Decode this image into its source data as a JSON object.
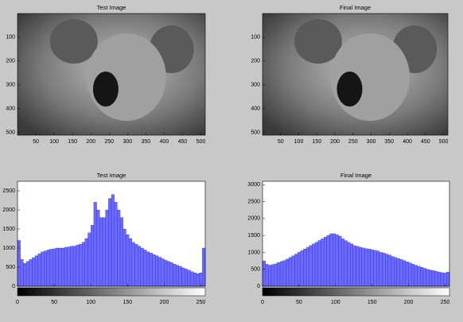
{
  "chart_data": [
    {
      "type": "image",
      "title": "Test Image",
      "xlim": [
        0,
        512
      ],
      "ylim": [
        0,
        512
      ],
      "y_reversed": true,
      "xticks": [
        50,
        100,
        150,
        200,
        250,
        300,
        350,
        400,
        450,
        500
      ],
      "yticks": [
        100,
        200,
        300,
        400,
        500
      ]
    },
    {
      "type": "image",
      "title": "Final Image",
      "xlim": [
        0,
        512
      ],
      "ylim": [
        0,
        512
      ],
      "y_reversed": true,
      "xticks": [
        50,
        100,
        150,
        200,
        250,
        300,
        350,
        400,
        450,
        500
      ],
      "yticks": [
        100,
        200,
        300,
        400,
        500
      ]
    },
    {
      "type": "histogram",
      "title": "Test Image",
      "color": "#6a6aff",
      "xlim": [
        0,
        256
      ],
      "ylim": [
        0,
        2750
      ],
      "xticks": [
        0,
        50,
        100,
        150,
        200,
        250
      ],
      "yticks": [
        0,
        500,
        1000,
        1500,
        2000,
        2500
      ],
      "x": [
        0,
        4,
        8,
        12,
        16,
        20,
        24,
        28,
        32,
        36,
        40,
        44,
        48,
        52,
        56,
        60,
        64,
        68,
        72,
        76,
        80,
        84,
        88,
        92,
        96,
        100,
        104,
        108,
        112,
        116,
        120,
        124,
        128,
        132,
        136,
        140,
        144,
        148,
        152,
        156,
        160,
        164,
        168,
        172,
        176,
        180,
        184,
        188,
        192,
        196,
        200,
        204,
        208,
        212,
        216,
        220,
        224,
        228,
        232,
        236,
        240,
        244,
        248,
        252
      ],
      "values": [
        1200,
        700,
        600,
        650,
        700,
        750,
        800,
        850,
        900,
        920,
        950,
        970,
        980,
        1000,
        1000,
        1000,
        1020,
        1030,
        1050,
        1050,
        1080,
        1100,
        1150,
        1250,
        1400,
        1600,
        2200,
        2000,
        1800,
        1800,
        2000,
        2300,
        2400,
        2200,
        2000,
        1800,
        1500,
        1350,
        1250,
        1150,
        1100,
        1050,
        1000,
        950,
        900,
        870,
        830,
        800,
        760,
        720,
        680,
        650,
        620,
        580,
        550,
        520,
        480,
        450,
        420,
        380,
        350,
        330,
        350,
        1000
      ]
    },
    {
      "type": "histogram",
      "title": "Final Image",
      "color": "#6a6aff",
      "xlim": [
        0,
        256
      ],
      "ylim": [
        0,
        3100
      ],
      "xticks": [
        0,
        50,
        100,
        150,
        200,
        250
      ],
      "yticks": [
        0,
        500,
        1000,
        1500,
        2000,
        2500,
        3000
      ],
      "x": [
        0,
        4,
        8,
        12,
        16,
        20,
        24,
        28,
        32,
        36,
        40,
        44,
        48,
        52,
        56,
        60,
        64,
        68,
        72,
        76,
        80,
        84,
        88,
        92,
        96,
        100,
        104,
        108,
        112,
        116,
        120,
        124,
        128,
        132,
        136,
        140,
        144,
        148,
        152,
        156,
        160,
        164,
        168,
        172,
        176,
        180,
        184,
        188,
        192,
        196,
        200,
        204,
        208,
        212,
        216,
        220,
        224,
        228,
        232,
        236,
        240,
        244,
        248,
        252
      ],
      "values": [
        750,
        650,
        620,
        640,
        660,
        700,
        730,
        760,
        800,
        850,
        900,
        950,
        1000,
        1050,
        1100,
        1150,
        1200,
        1250,
        1300,
        1350,
        1400,
        1450,
        1500,
        1550,
        1550,
        1520,
        1480,
        1400,
        1350,
        1300,
        1250,
        1200,
        1180,
        1150,
        1130,
        1110,
        1100,
        1080,
        1060,
        1040,
        1000,
        980,
        950,
        920,
        880,
        850,
        820,
        790,
        760,
        720,
        690,
        650,
        620,
        590,
        560,
        530,
        500,
        480,
        460,
        440,
        420,
        400,
        390,
        420
      ]
    }
  ]
}
